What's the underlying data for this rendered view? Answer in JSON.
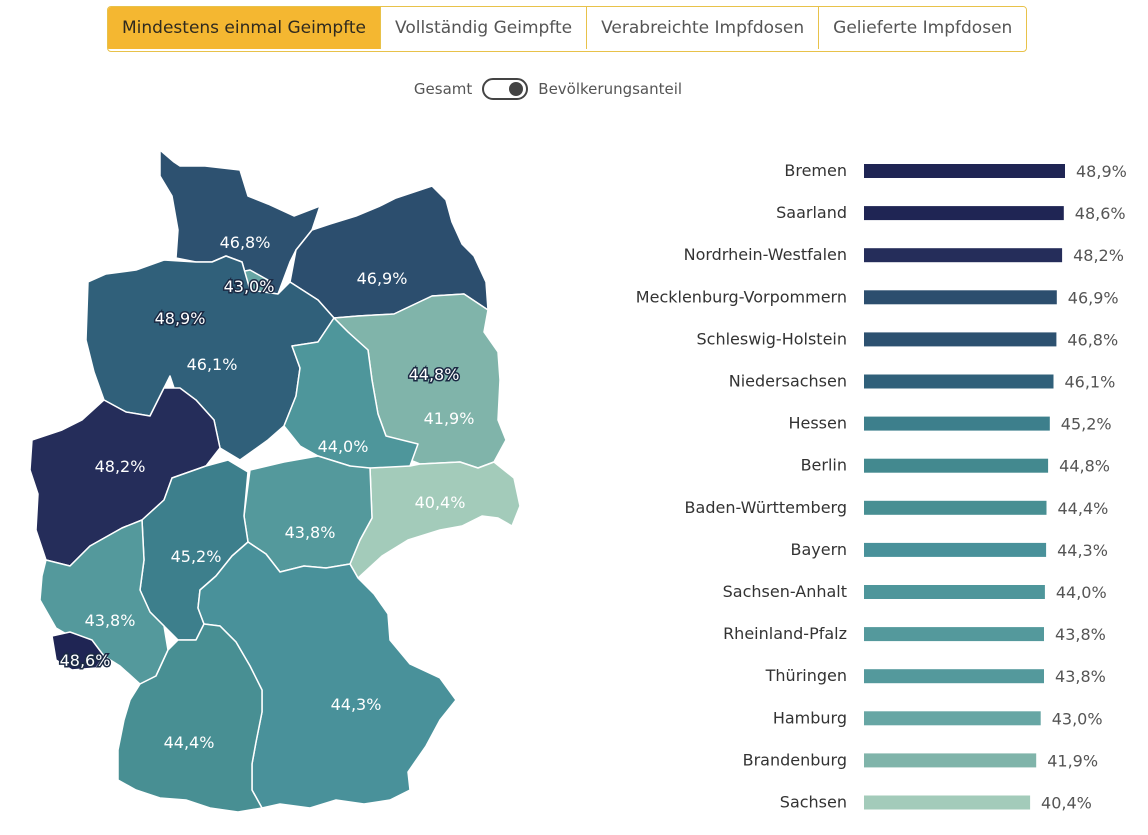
{
  "tabs": [
    {
      "label": "Mindestens einmal Geimpfte",
      "active": true
    },
    {
      "label": "Vollständig Geimpfte",
      "active": false
    },
    {
      "label": "Verabreichte Impfdosen",
      "active": false
    },
    {
      "label": "Gelieferte Impfdosen",
      "active": false
    }
  ],
  "toggle": {
    "left_label": "Gesamt",
    "right_label": "Bevölkerungsanteil",
    "state": "right"
  },
  "chart_data": {
    "type": "bar",
    "orientation": "horizontal",
    "categories": [
      "Bremen",
      "Saarland",
      "Nordrhein-Westfalen",
      "Mecklenburg-Vorpommern",
      "Schleswig-Holstein",
      "Niedersachsen",
      "Hessen",
      "Berlin",
      "Baden-Württemberg",
      "Bayern",
      "Sachsen-Anhalt",
      "Rheinland-Pfalz",
      "Thüringen",
      "Hamburg",
      "Brandenburg",
      "Sachsen"
    ],
    "values": [
      48.9,
      48.6,
      48.2,
      46.9,
      46.8,
      46.1,
      45.2,
      44.8,
      44.4,
      44.3,
      44.0,
      43.8,
      43.8,
      43.0,
      41.9,
      40.4
    ],
    "value_labels": [
      "48,9%",
      "48,6%",
      "48,2%",
      "46,9%",
      "46,8%",
      "46,1%",
      "45,2%",
      "44,8%",
      "44,4%",
      "44,3%",
      "44,0%",
      "43,8%",
      "43,8%",
      "43,0%",
      "41,9%",
      "40,4%"
    ],
    "colors": [
      "#1f2554",
      "#1f2554",
      "#252d5a",
      "#2c4e6e",
      "#2d5170",
      "#30607a",
      "#3d7f8c",
      "#43898f",
      "#488f93",
      "#49919a",
      "#4e969b",
      "#54999c",
      "#54999c",
      "#67a6a4",
      "#80b4aa",
      "#a3cbba"
    ]
  },
  "map": {
    "regions": [
      {
        "name": "Schleswig-Holstein",
        "label": "46,8%",
        "color": "#2d5170"
      },
      {
        "name": "Hamburg",
        "label": "43,0%",
        "color": "#67a6a4"
      },
      {
        "name": "Mecklenburg-Vorpommern",
        "label": "46,9%",
        "color": "#2c4e6e"
      },
      {
        "name": "Bremen",
        "label": "48,9%",
        "color": "#1f2554"
      },
      {
        "name": "Niedersachsen",
        "label": "46,1%",
        "color": "#30607a"
      },
      {
        "name": "Berlin",
        "label": "44,8%",
        "color": "#43898f"
      },
      {
        "name": "Brandenburg",
        "label": "41,9%",
        "color": "#80b4aa"
      },
      {
        "name": "Sachsen-Anhalt",
        "label": "44,0%",
        "color": "#4e969b"
      },
      {
        "name": "Nordrhein-Westfalen",
        "label": "48,2%",
        "color": "#252d5a"
      },
      {
        "name": "Sachsen",
        "label": "40,4%",
        "color": "#a3cbba"
      },
      {
        "name": "Thüringen",
        "label": "43,8%",
        "color": "#54999c"
      },
      {
        "name": "Hessen",
        "label": "45,2%",
        "color": "#3d7f8c"
      },
      {
        "name": "Rheinland-Pfalz",
        "label": "43,8%",
        "color": "#54999c"
      },
      {
        "name": "Saarland",
        "label": "48,6%",
        "color": "#1f2554"
      },
      {
        "name": "Bayern",
        "label": "44,3%",
        "color": "#49919a"
      },
      {
        "name": "Baden-Württemberg",
        "label": "44,4%",
        "color": "#488f93"
      }
    ]
  }
}
